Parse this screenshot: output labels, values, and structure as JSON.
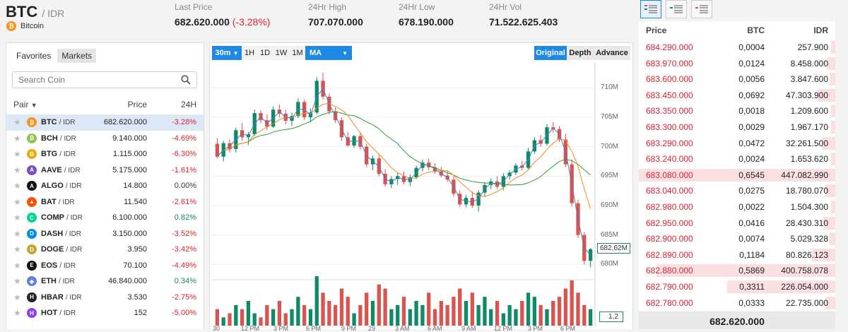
{
  "header": {
    "base": "BTC",
    "quote": "/ IDR",
    "coin_name": "Bitcoin",
    "stats": [
      {
        "label": "Last Price",
        "value": "682.620.000",
        "change": "(-3.28%)"
      },
      {
        "label": "24Hr High",
        "value": "707.070.000"
      },
      {
        "label": "24Hr Low",
        "value": "678.190.000"
      },
      {
        "label": "24Hr Vol",
        "value": "71.522.625.403"
      }
    ]
  },
  "market_list": {
    "tabs": [
      "Favorites",
      "Markets"
    ],
    "active_tab": "Markets",
    "search_placeholder": "Search Coin",
    "columns": {
      "pair": "Pair",
      "price": "Price",
      "change": "24H"
    },
    "rows": [
      {
        "symbol": "BTC",
        "quote": "/ IDR",
        "price": "682.620.000",
        "change": "-3.28%",
        "dir": "neg",
        "icon_color": "#f7931a",
        "icon_letter": "₿",
        "selected": true
      },
      {
        "symbol": "BCH",
        "quote": "/ IDR",
        "price": "9.140.000",
        "change": "-4.69%",
        "dir": "neg",
        "icon_color": "#8dc351",
        "icon_letter": "₿"
      },
      {
        "symbol": "BTG",
        "quote": "/ IDR",
        "price": "1.115.000",
        "change": "-6.30%",
        "dir": "neg",
        "icon_color": "#eba809",
        "icon_letter": "B"
      },
      {
        "symbol": "AAVE",
        "quote": "/ IDR",
        "price": "5.175.000",
        "change": "-1.61%",
        "dir": "neg",
        "icon_color": "#7a4fc6",
        "icon_letter": "A"
      },
      {
        "symbol": "ALGO",
        "quote": "/ IDR",
        "price": "14.800",
        "change": "0.00%",
        "dir": "zero",
        "icon_color": "#111111",
        "icon_letter": "A"
      },
      {
        "symbol": "BAT",
        "quote": "/ IDR",
        "price": "11.540",
        "change": "-2.61%",
        "dir": "neg",
        "icon_color": "#ff5000",
        "icon_letter": "▲"
      },
      {
        "symbol": "COMP",
        "quote": "/ IDR",
        "price": "6.100.000",
        "change": "0.82%",
        "dir": "pos",
        "icon_color": "#00d395",
        "icon_letter": "C"
      },
      {
        "symbol": "DASH",
        "quote": "/ IDR",
        "price": "3.150.000",
        "change": "-3.52%",
        "dir": "neg",
        "icon_color": "#008de4",
        "icon_letter": "D"
      },
      {
        "symbol": "DOGE",
        "quote": "/ IDR",
        "price": "3.950",
        "change": "-3.42%",
        "dir": "neg",
        "icon_color": "#c2a633",
        "icon_letter": "D"
      },
      {
        "symbol": "EOS",
        "quote": "/ IDR",
        "price": "70.100",
        "change": "-4.49%",
        "dir": "neg",
        "icon_color": "#111111",
        "icon_letter": "E"
      },
      {
        "symbol": "ETH",
        "quote": "/ IDR",
        "price": "46.840.000",
        "change": "0.34%",
        "dir": "pos",
        "icon_color": "#627eea",
        "icon_letter": "◆"
      },
      {
        "symbol": "HBAR",
        "quote": "/ IDR",
        "price": "3.530",
        "change": "-2.75%",
        "dir": "neg",
        "icon_color": "#222222",
        "icon_letter": "H"
      },
      {
        "symbol": "HOT",
        "quote": "/ IDR",
        "price": "152",
        "change": "-5.00%",
        "dir": "neg",
        "icon_color": "#8a3ffc",
        "icon_letter": "H"
      }
    ]
  },
  "chart_toolbar": {
    "interval": "30m",
    "ranges": [
      "1H",
      "1D",
      "1W",
      "1M"
    ],
    "indicator": "MA",
    "views": [
      "Original",
      "Depth",
      "Advance"
    ],
    "active_view": "Original"
  },
  "chart_data": {
    "type": "candlestick",
    "y_ticks": [
      "710M",
      "705M",
      "700M",
      "695M",
      "690M",
      "685M",
      "680M"
    ],
    "ylim": [
      678,
      714
    ],
    "x_ticks": [
      "30",
      "12 PM",
      "3 PM",
      "6 PM",
      "9 PM",
      "29",
      "3 AM",
      "6 AM",
      "9 AM",
      "12 PM",
      "3 PM",
      "6 PM"
    ],
    "last_price_label": "682,62M",
    "volume_label": "1,2",
    "colors": {
      "up": "#0e8a66",
      "down": "#d9534f",
      "ma_fast": "#f08a24",
      "ma_slow": "#2e9a3a",
      "ma_blue": "#4a7bc8"
    },
    "candles": [
      [
        700.5,
        701.5,
        698.0,
        698.3
      ],
      [
        698.3,
        701.0,
        697.5,
        700.6
      ],
      [
        700.6,
        701.2,
        699.0,
        699.6
      ],
      [
        699.6,
        703.2,
        699.0,
        702.8
      ],
      [
        702.8,
        704.0,
        701.0,
        701.6
      ],
      [
        701.6,
        702.5,
        700.3,
        702.1
      ],
      [
        702.1,
        706.3,
        701.8,
        705.7
      ],
      [
        705.7,
        706.2,
        704.0,
        704.5
      ],
      [
        704.5,
        705.5,
        702.8,
        703.4
      ],
      [
        703.4,
        706.8,
        703.2,
        706.3
      ],
      [
        706.3,
        707.2,
        705.0,
        705.6
      ],
      [
        705.6,
        706.3,
        703.8,
        704.4
      ],
      [
        704.4,
        705.8,
        703.5,
        705.2
      ],
      [
        705.2,
        708.2,
        704.9,
        707.6
      ],
      [
        707.6,
        708.0,
        704.5,
        705.0
      ],
      [
        705.0,
        706.5,
        704.2,
        705.8
      ],
      [
        705.8,
        711.8,
        705.5,
        711.2
      ],
      [
        711.2,
        712.6,
        708.0,
        708.5
      ],
      [
        708.5,
        709.0,
        705.5,
        706.0
      ],
      [
        706.0,
        706.7,
        704.0,
        704.5
      ],
      [
        704.5,
        705.0,
        701.0,
        701.6
      ],
      [
        701.6,
        702.5,
        700.0,
        700.2
      ],
      [
        700.2,
        702.0,
        699.8,
        701.8
      ],
      [
        701.8,
        702.3,
        699.5,
        700.0
      ],
      [
        700.0,
        700.5,
        696.5,
        697.0
      ],
      [
        697.0,
        698.5,
        696.0,
        698.0
      ],
      [
        698.0,
        698.6,
        695.0,
        695.4
      ],
      [
        695.4,
        696.2,
        693.2,
        693.6
      ],
      [
        693.6,
        695.0,
        693.0,
        694.5
      ],
      [
        694.5,
        695.6,
        693.5,
        695.0
      ],
      [
        695.0,
        695.8,
        693.6,
        694.0
      ],
      [
        694.0,
        695.3,
        693.3,
        694.8
      ],
      [
        694.8,
        696.8,
        694.5,
        696.4
      ],
      [
        696.4,
        697.8,
        695.8,
        697.3
      ],
      [
        697.3,
        698.0,
        696.0,
        696.5
      ],
      [
        696.5,
        697.2,
        695.4,
        695.8
      ],
      [
        695.8,
        696.6,
        694.8,
        695.1
      ],
      [
        695.1,
        695.8,
        694.0,
        694.4
      ],
      [
        694.4,
        695.0,
        691.5,
        692.0
      ],
      [
        692.0,
        692.6,
        689.8,
        690.2
      ],
      [
        690.2,
        691.8,
        689.7,
        691.3
      ],
      [
        691.3,
        692.4,
        689.6,
        690.0
      ],
      [
        690.0,
        692.6,
        689.0,
        692.2
      ],
      [
        692.2,
        694.0,
        691.6,
        693.5
      ],
      [
        693.5,
        694.6,
        692.8,
        694.1
      ],
      [
        694.1,
        695.0,
        692.8,
        693.2
      ],
      [
        693.2,
        695.5,
        692.6,
        695.0
      ],
      [
        695.0,
        696.0,
        694.4,
        695.6
      ],
      [
        695.6,
        697.2,
        695.2,
        696.8
      ],
      [
        696.8,
        697.6,
        696.0,
        696.4
      ],
      [
        696.4,
        699.8,
        696.2,
        699.2
      ],
      [
        699.2,
        701.6,
        698.8,
        701.1
      ],
      [
        701.1,
        702.0,
        700.0,
        700.5
      ],
      [
        700.5,
        703.8,
        700.2,
        703.3
      ],
      [
        703.3,
        704.2,
        702.4,
        703.0
      ],
      [
        703.0,
        703.5,
        700.8,
        701.2
      ],
      [
        701.2,
        702.2,
        696.5,
        697.0
      ],
      [
        697.0,
        697.8,
        689.8,
        690.4
      ],
      [
        690.4,
        691.0,
        684.5,
        685.0
      ],
      [
        685.0,
        685.5,
        680.0,
        680.6
      ],
      [
        680.6,
        682.8,
        679.5,
        682.6
      ]
    ],
    "volume": [
      4,
      2,
      3,
      5,
      4,
      6,
      3,
      2,
      5,
      4,
      6,
      3,
      4,
      7,
      5,
      4,
      12,
      8,
      6,
      5,
      9,
      7,
      3,
      5,
      8,
      6,
      10,
      9,
      4,
      5,
      7,
      4,
      6,
      5,
      8,
      4,
      6,
      5,
      7,
      9,
      6,
      8,
      5,
      7,
      4,
      6,
      3,
      5,
      4,
      6,
      8,
      7,
      5,
      4,
      6,
      7,
      9,
      11,
      8,
      5,
      4
    ]
  },
  "order_book": {
    "columns": {
      "price": "Price",
      "qty": "BTC",
      "total": "IDR"
    },
    "rows": [
      {
        "price": "684.290.000",
        "qty": "0,0004",
        "total": "257.900",
        "depth": 0.02
      },
      {
        "price": "683.970.000",
        "qty": "0,0124",
        "total": "8.458.000",
        "depth": 0.04
      },
      {
        "price": "683.600.000",
        "qty": "0,0056",
        "total": "3.847.600",
        "depth": 0.03
      },
      {
        "price": "683.450.000",
        "qty": "0,0692",
        "total": "47.303.900",
        "depth": 0.09
      },
      {
        "price": "683.350.000",
        "qty": "0,0018",
        "total": "1.209.600",
        "depth": 0.02
      },
      {
        "price": "683.300.000",
        "qty": "0,0029",
        "total": "1.967.170",
        "depth": 0.02
      },
      {
        "price": "683.290.000",
        "qty": "0,0472",
        "total": "32.261.500",
        "depth": 0.07
      },
      {
        "price": "683.240.000",
        "qty": "0,0024",
        "total": "1.653.620",
        "depth": 0.02
      },
      {
        "price": "683.080.000",
        "qty": "0,6545",
        "total": "447.082.990",
        "depth": 1.0
      },
      {
        "price": "683.040.000",
        "qty": "0,0275",
        "total": "18.780.070",
        "depth": 0.05
      },
      {
        "price": "682.980.000",
        "qty": "0,0022",
        "total": "1.504.300",
        "depth": 0.02
      },
      {
        "price": "682.950.000",
        "qty": "0,0416",
        "total": "28.430.310",
        "depth": 0.06
      },
      {
        "price": "682.900.000",
        "qty": "0,0074",
        "total": "5.029.328",
        "depth": 0.03
      },
      {
        "price": "682.890.000",
        "qty": "0,1184",
        "total": "80.826.123",
        "depth": 0.12
      },
      {
        "price": "682.880.000",
        "qty": "0,5869",
        "total": "400.758.078",
        "depth": 0.91
      },
      {
        "price": "682.790.000",
        "qty": "0,3311",
        "total": "226.054.000",
        "depth": 0.55
      },
      {
        "price": "682.780.000",
        "qty": "0,0333",
        "total": "22.735.000",
        "depth": 0.05
      }
    ],
    "last_price": "682.620.000"
  }
}
